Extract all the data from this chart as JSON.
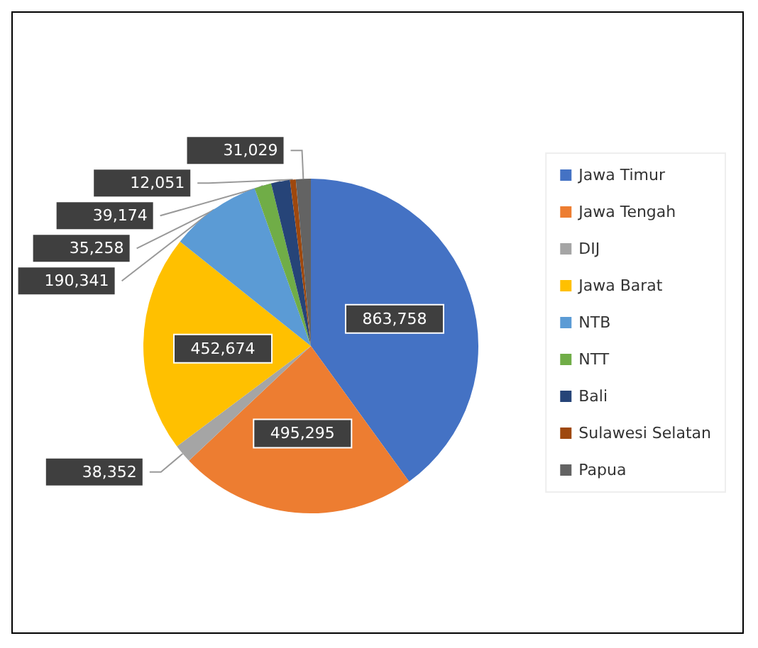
{
  "chart_data": {
    "type": "pie",
    "categories": [
      "Jawa Timur",
      "Jawa Tengah",
      "DIJ",
      "Jawa Barat",
      "NTB",
      "NTT",
      "Bali",
      "Sulawesi Selatan",
      "Papua"
    ],
    "values": [
      863758,
      495295,
      38352,
      452674,
      190341,
      35258,
      39174,
      12051,
      31029
    ],
    "value_labels": [
      "863,758",
      "495,295",
      "38,352",
      "452,674",
      "190,341",
      "35,258",
      "39,174",
      "12,051",
      "31,029"
    ],
    "colors": [
      "#4472c4",
      "#ed7d31",
      "#a5a5a5",
      "#ffc000",
      "#5b9bd5",
      "#70ad47",
      "#264478",
      "#9e480e",
      "#636363"
    ],
    "legend": "right"
  }
}
